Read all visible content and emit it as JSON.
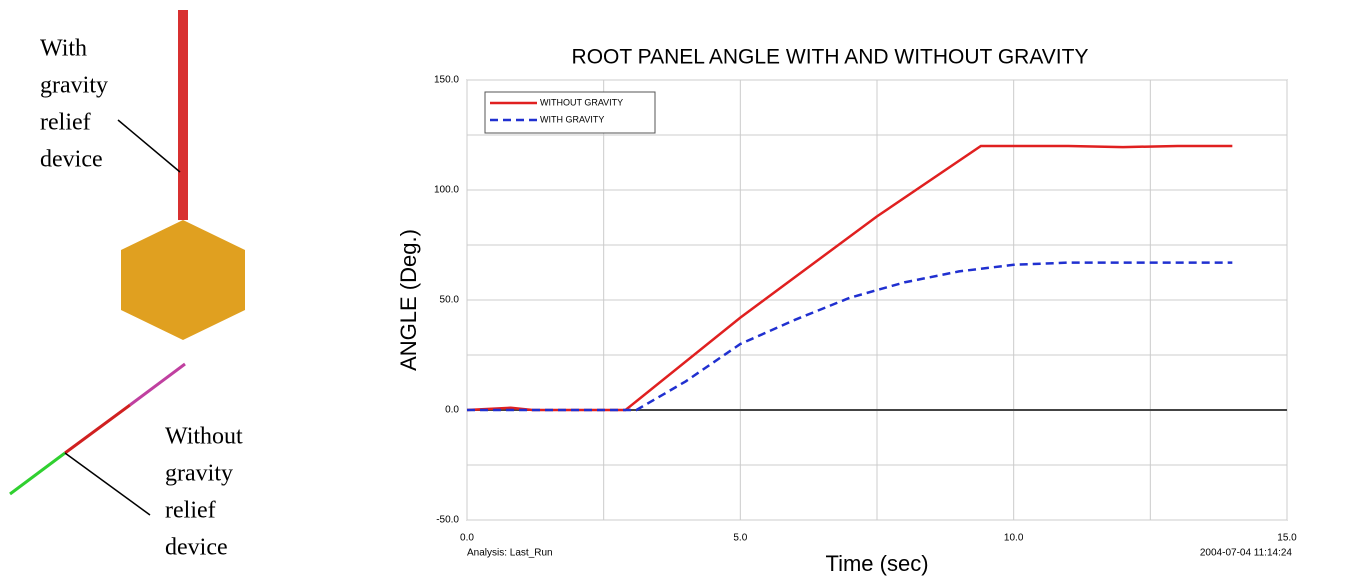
{
  "diagram": {
    "labels": [
      [
        "With",
        "gravity",
        "relief",
        "device"
      ],
      [
        "Without",
        "gravity",
        "relief",
        "device"
      ]
    ]
  },
  "chart_data": {
    "type": "line",
    "title": "ROOT PANEL ANGLE WITH AND WITHOUT GRAVITY",
    "x_label": "Time (sec)",
    "y_label": "ANGLE (Deg.)",
    "annotations": [
      "Analysis:  Last_Run",
      "2004-07-04 11:14:24"
    ],
    "xlim": [
      0,
      15
    ],
    "ylim": [
      -50,
      150
    ],
    "xticks": [
      {
        "value": 0,
        "label": "0.0"
      },
      {
        "value": 5,
        "label": "5.0"
      },
      {
        "value": 10,
        "label": "10.0"
      },
      {
        "value": 15,
        "label": "15.0"
      }
    ],
    "yticks": [
      {
        "value": -50,
        "label": "-50.0"
      },
      {
        "value": 0,
        "label": "0.0"
      },
      {
        "value": 50,
        "label": "50.0"
      },
      {
        "value": 100,
        "label": "100.0"
      },
      {
        "value": 150,
        "label": "150.0"
      }
    ],
    "x_minor_ticks": [
      2.5,
      7.5,
      12.5
    ],
    "y_minor_ticks": [
      -25,
      25,
      75,
      125
    ],
    "grid": true,
    "legend": "upper left",
    "series": [
      {
        "name": "WITHOUT GRAVITY",
        "color": "#e02020",
        "dash": false,
        "x": [
          0,
          0.8,
          1.2,
          2.9,
          5,
          7.5,
          9.4,
          10,
          11,
          12,
          13,
          14
        ],
        "values": [
          0,
          1,
          0,
          0,
          42,
          88,
          120,
          120,
          120,
          119.5,
          120,
          120
        ]
      },
      {
        "name": "WITH GRAVITY",
        "color": "#2030d0",
        "dash": true,
        "x": [
          0,
          3.1,
          4,
          5,
          6,
          7,
          8,
          9,
          10,
          11,
          12,
          13,
          14
        ],
        "values": [
          0,
          0,
          13,
          30,
          41,
          51,
          58,
          63,
          66,
          67,
          67,
          67,
          67
        ]
      }
    ]
  }
}
